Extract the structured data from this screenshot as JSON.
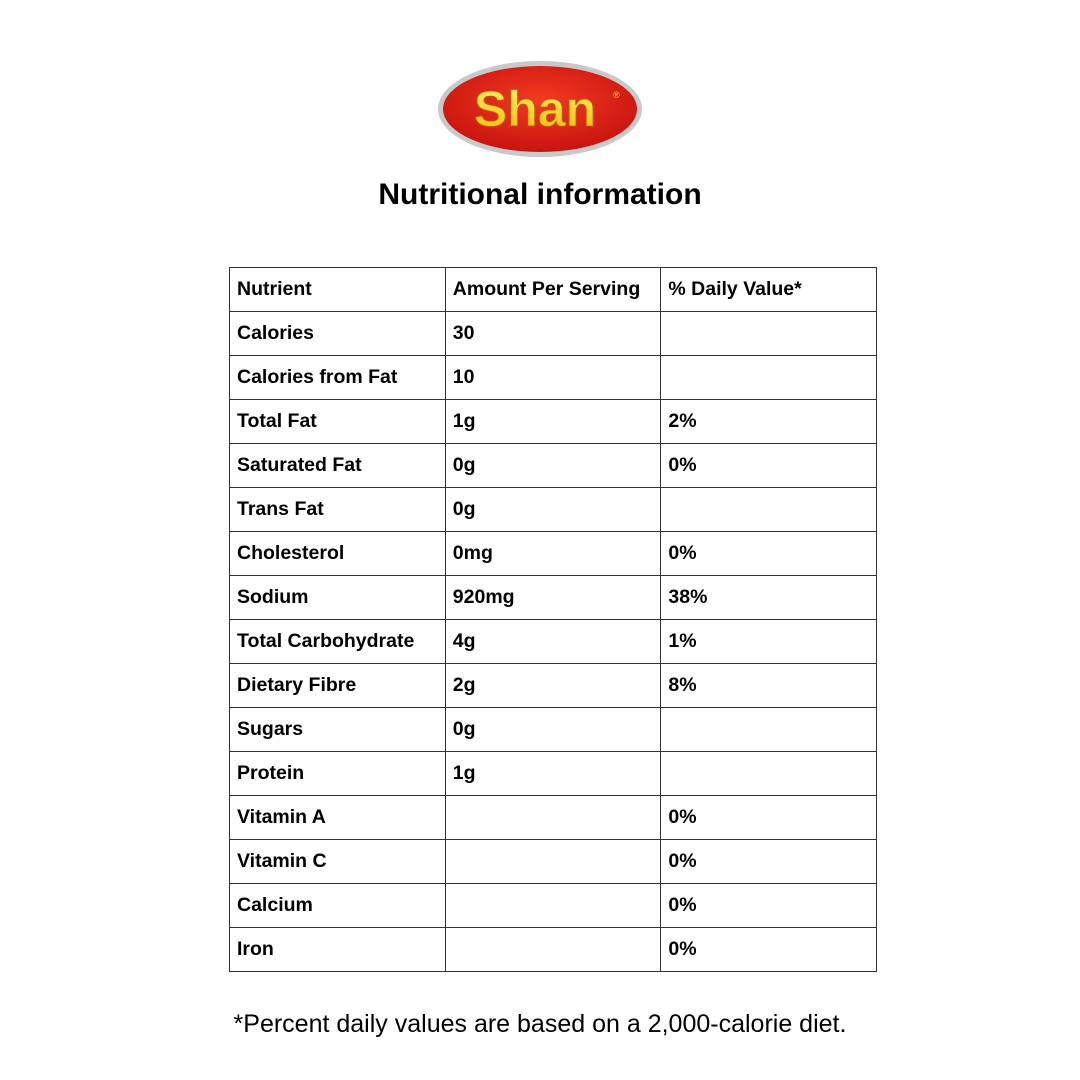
{
  "logo": {
    "text": "Shan",
    "colors": {
      "oval": "#e3261c",
      "rim": "#b0b0b0",
      "text": "#ffd400"
    }
  },
  "title": "Nutritional information",
  "table": {
    "headers": [
      "Nutrient",
      "Amount Per Serving",
      "% Daily Value*"
    ],
    "rows": [
      [
        "Calories",
        "30",
        ""
      ],
      [
        "Calories from Fat",
        "10",
        ""
      ],
      [
        "Total Fat",
        "1g",
        "2%"
      ],
      [
        "Saturated Fat",
        "0g",
        "0%"
      ],
      [
        "Trans Fat",
        "0g",
        ""
      ],
      [
        "Cholesterol",
        "0mg",
        "0%"
      ],
      [
        "Sodium",
        "920mg",
        "38%"
      ],
      [
        "Total Carbohydrate",
        "4g",
        "1%"
      ],
      [
        "Dietary Fibre",
        "2g",
        "8%"
      ],
      [
        "Sugars",
        "0g",
        ""
      ],
      [
        "Protein",
        "1g",
        ""
      ],
      [
        "Vitamin A",
        "",
        "0%"
      ],
      [
        "Vitamin C",
        "",
        "0%"
      ],
      [
        "Calcium",
        "",
        "0%"
      ],
      [
        "Iron",
        "",
        "0%"
      ]
    ]
  },
  "footer": "*Percent daily values are based on a 2,000-calorie diet."
}
